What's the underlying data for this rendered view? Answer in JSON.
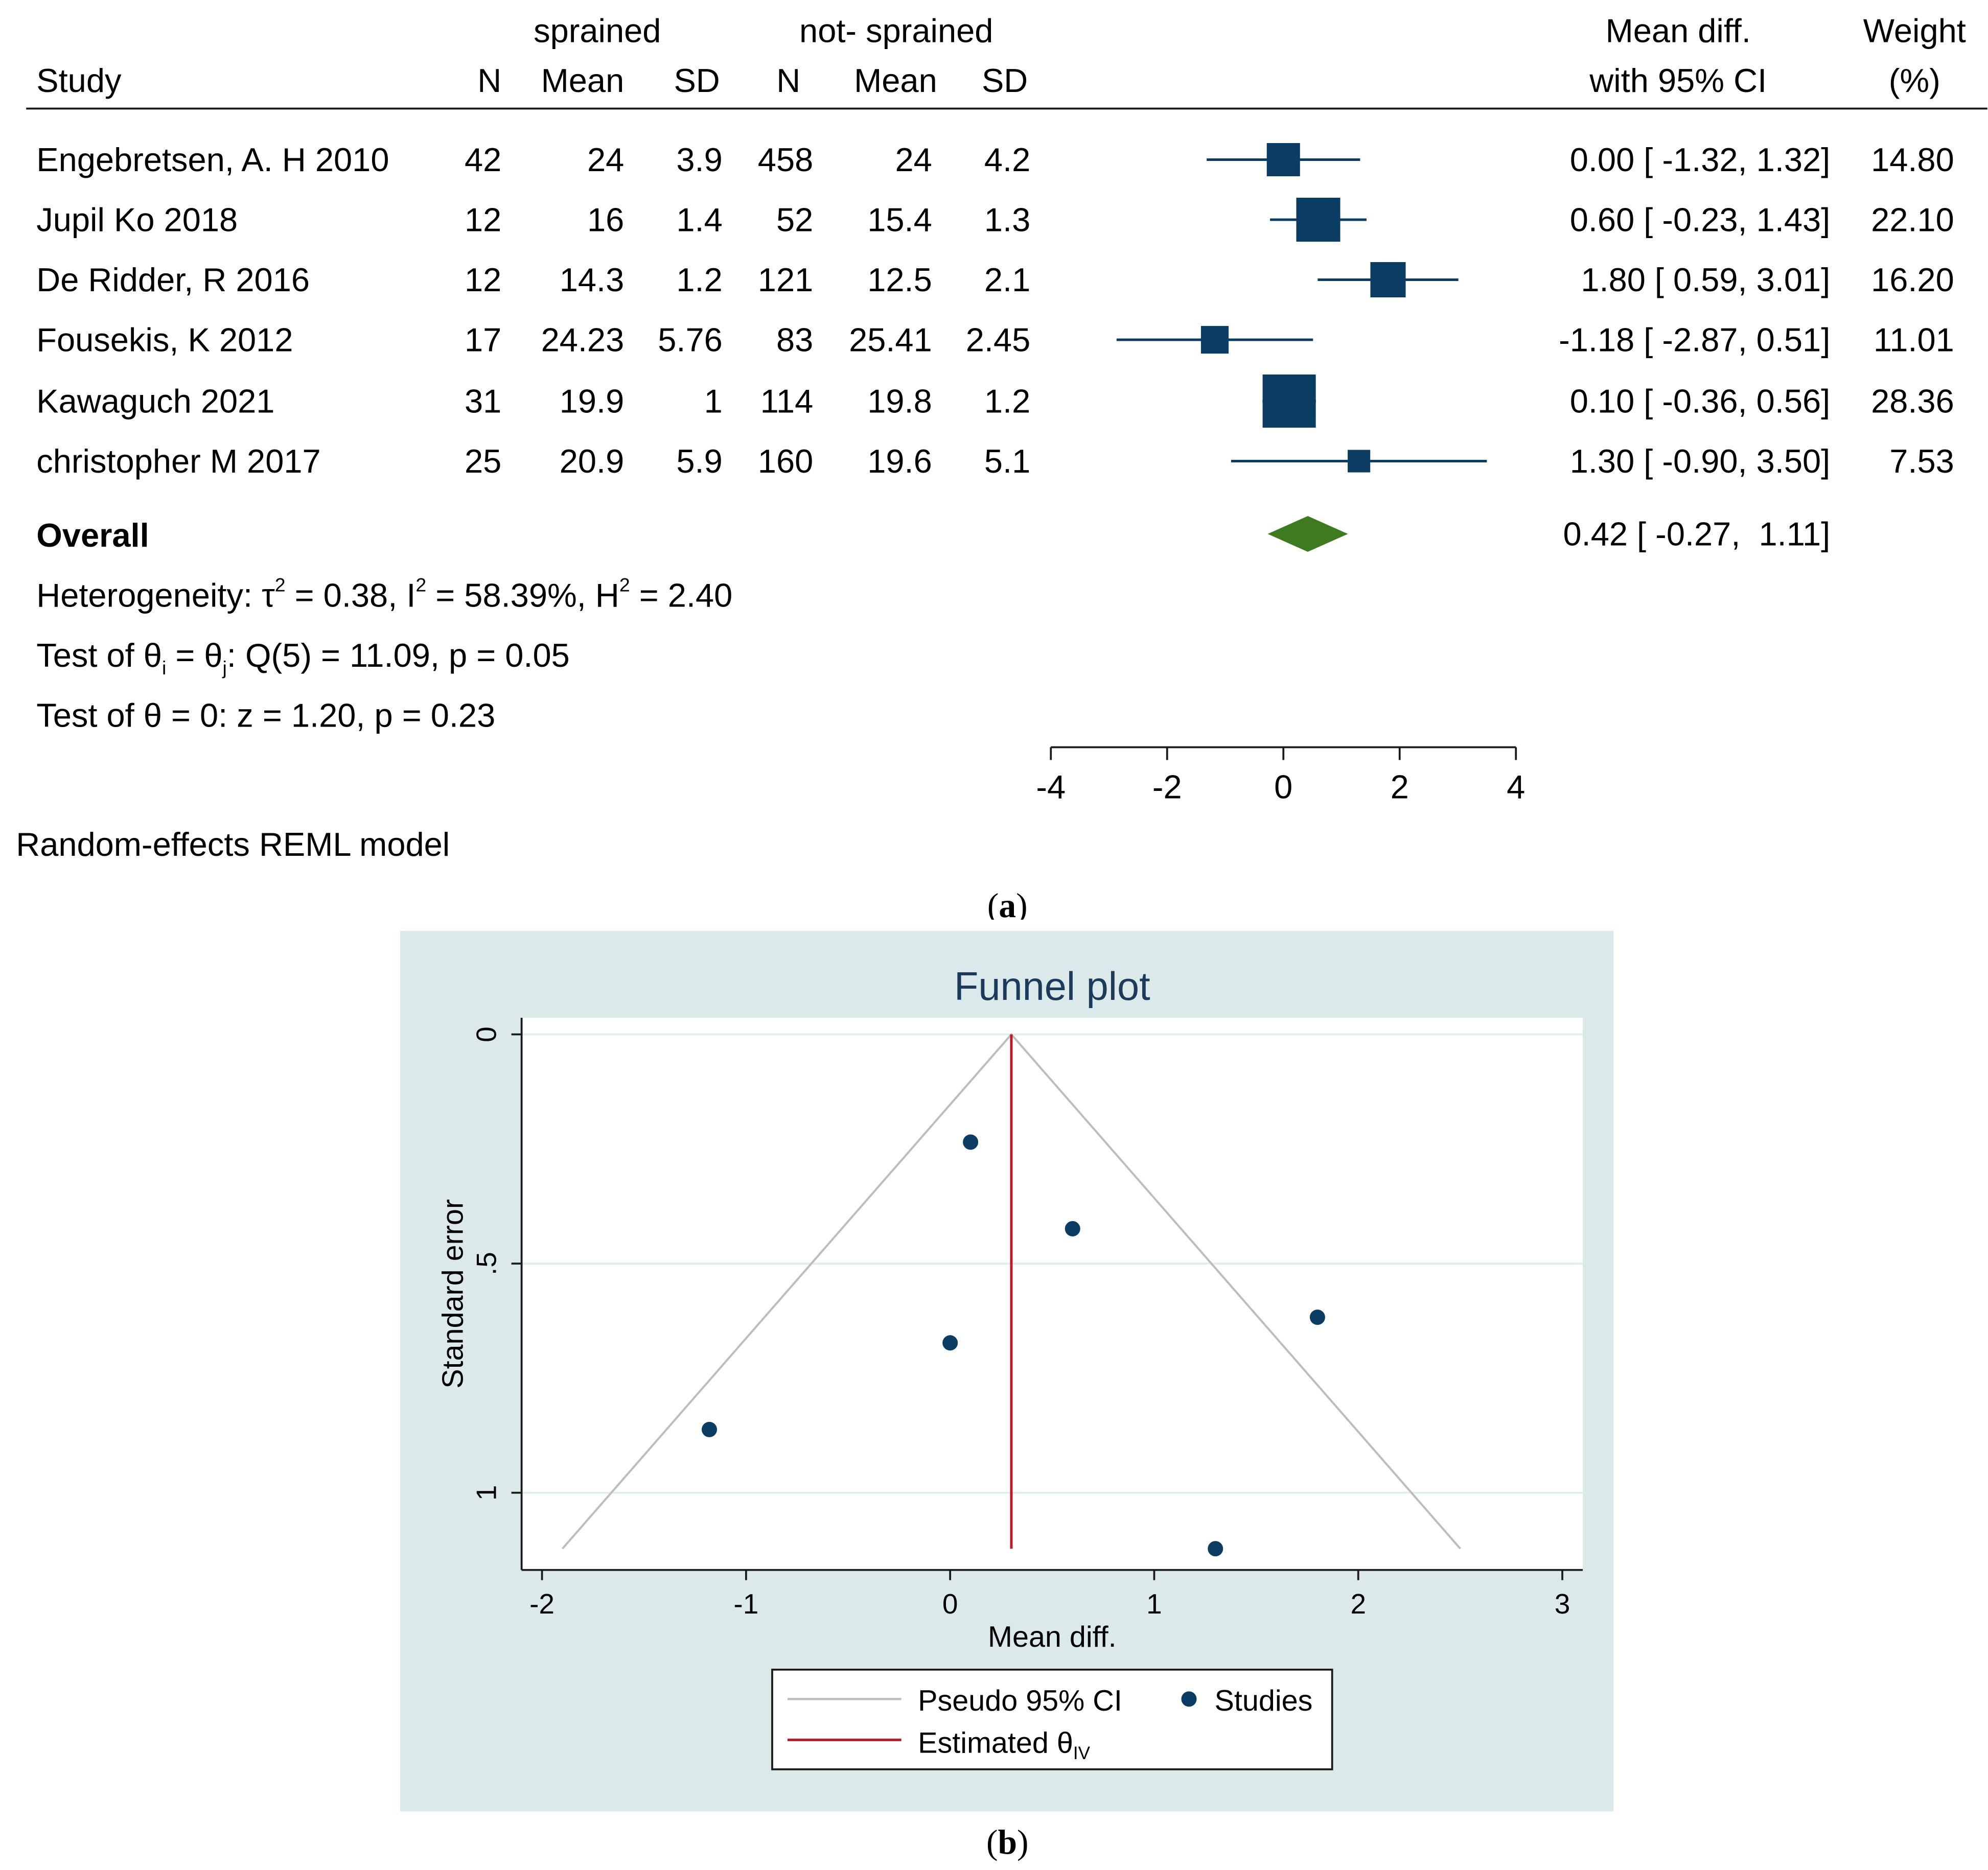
{
  "chart_data": [
    {
      "type": "forest",
      "group_labels": {
        "treated": "sprained",
        "control": "not- sprained"
      },
      "columns": {
        "study": "Study",
        "n": "N",
        "mean": "Mean",
        "sd": "SD",
        "effect_line1": "Mean diff.",
        "effect_line2": "with 95% CI",
        "weight_line1": "Weight",
        "weight_line2": "(%)"
      },
      "studies": [
        {
          "name": "Engebretsen, A. H 2010",
          "n1": "42",
          "mean1": "24",
          "sd1": "3.9",
          "n2": "458",
          "mean2": "24",
          "sd2": "4.2",
          "md": 0.0,
          "lo": -1.32,
          "hi": 1.32,
          "ci_text": "0.00 [ -1.32,  1.32]",
          "weight": "14.80"
        },
        {
          "name": "Jupil Ko 2018",
          "n1": "12",
          "mean1": "16",
          "sd1": "1.4",
          "n2": "52",
          "mean2": "15.4",
          "sd2": "1.3",
          "md": 0.6,
          "lo": -0.23,
          "hi": 1.43,
          "ci_text": "0.60 [ -0.23,  1.43]",
          "weight": "22.10"
        },
        {
          "name": "De Ridder, R 2016",
          "n1": "12",
          "mean1": "14.3",
          "sd1": "1.2",
          "n2": "121",
          "mean2": "12.5",
          "sd2": "2.1",
          "md": 1.8,
          "lo": 0.59,
          "hi": 3.01,
          "ci_text": "1.80 [  0.59,  3.01]",
          "weight": "16.20"
        },
        {
          "name": "Fousekis, K 2012",
          "n1": "17",
          "mean1": "24.23",
          "sd1": "5.76",
          "n2": "83",
          "mean2": "25.41",
          "sd2": "2.45",
          "md": -1.18,
          "lo": -2.87,
          "hi": 0.51,
          "ci_text": "-1.18 [ -2.87,  0.51]",
          "weight": "11.01"
        },
        {
          "name": "Kawaguch 2021",
          "n1": "31",
          "mean1": "19.9",
          "sd1": "1",
          "n2": "114",
          "mean2": "19.8",
          "sd2": "1.2",
          "md": 0.1,
          "lo": -0.36,
          "hi": 0.56,
          "ci_text": "0.10 [ -0.36,  0.56]",
          "weight": "28.36"
        },
        {
          "name": "christopher M 2017",
          "n1": "25",
          "mean1": "20.9",
          "sd1": "5.9",
          "n2": "160",
          "mean2": "19.6",
          "sd2": "5.1",
          "md": 1.3,
          "lo": -0.9,
          "hi": 3.5,
          "ci_text": "1.30 [ -0.90,  3.50]",
          "weight": "7.53"
        }
      ],
      "overall": {
        "label": "Overall",
        "md": 0.42,
        "lo": -0.27,
        "hi": 1.11,
        "ci_text": "0.42 [ -0.27,  1.11]"
      },
      "heterogeneity": {
        "prefix": "Heterogeneity: τ",
        "tau2": " = 0.38, I",
        "i2": " = 58.39%, H",
        "h2": " = 2.40",
        "sup": "2"
      },
      "test_q": {
        "prefix": "Test of θ",
        "sub_i": "i",
        "eq": " = θ",
        "sub_j": "j",
        "rest": ": Q(5) = 11.09, p = 0.05"
      },
      "test_z": "Test of θ = 0: z = 1.20, p = 0.23",
      "axis": {
        "ticks": [
          "-4",
          "-2",
          "0",
          "2",
          "4"
        ],
        "range": [
          -4,
          4
        ]
      },
      "model_note": "Random-effects REML model",
      "panel_label": {
        "open": "(",
        "letter": "a",
        "close": ")"
      },
      "colors": {
        "marker": "#0b3c64",
        "diamond": "#3e7a1f"
      }
    },
    {
      "type": "scatter",
      "title": "Funnel plot",
      "xlabel": "Mean diff.",
      "ylabel": "Standard error",
      "xlim": [
        -2.1,
        3.1
      ],
      "ylim": [
        1.16,
        0
      ],
      "xticks": [
        "-2",
        "-1",
        "0",
        "1",
        "2",
        "3"
      ],
      "yticks": [
        "0",
        ".5",
        "1"
      ],
      "points": [
        {
          "x": 0.1,
          "y": 0.235
        },
        {
          "x": 0.6,
          "y": 0.424
        },
        {
          "x": 1.8,
          "y": 0.617
        },
        {
          "x": 0.0,
          "y": 0.673
        },
        {
          "x": -1.18,
          "y": 0.862
        },
        {
          "x": 1.3,
          "y": 1.122
        }
      ],
      "estimate": 0.3,
      "pseudo_ci": {
        "apex": [
          0.3,
          0
        ],
        "left": [
          -1.9,
          1.122
        ],
        "right": [
          2.5,
          1.122
        ]
      },
      "legend": {
        "pseudo": "Pseudo 95% CI",
        "studies": "Studies",
        "estimated_prefix": "Estimated θ",
        "estimated_sub": "IV"
      },
      "panel_label": {
        "open": "(",
        "letter": "b",
        "close": ")"
      },
      "colors": {
        "background": "#dce9ea",
        "points": "#0b3c64",
        "estimate": "#c0182b",
        "ci": "#bdbdbd",
        "grid": "#e0eeee",
        "title": "#1c3b5a"
      }
    }
  ]
}
